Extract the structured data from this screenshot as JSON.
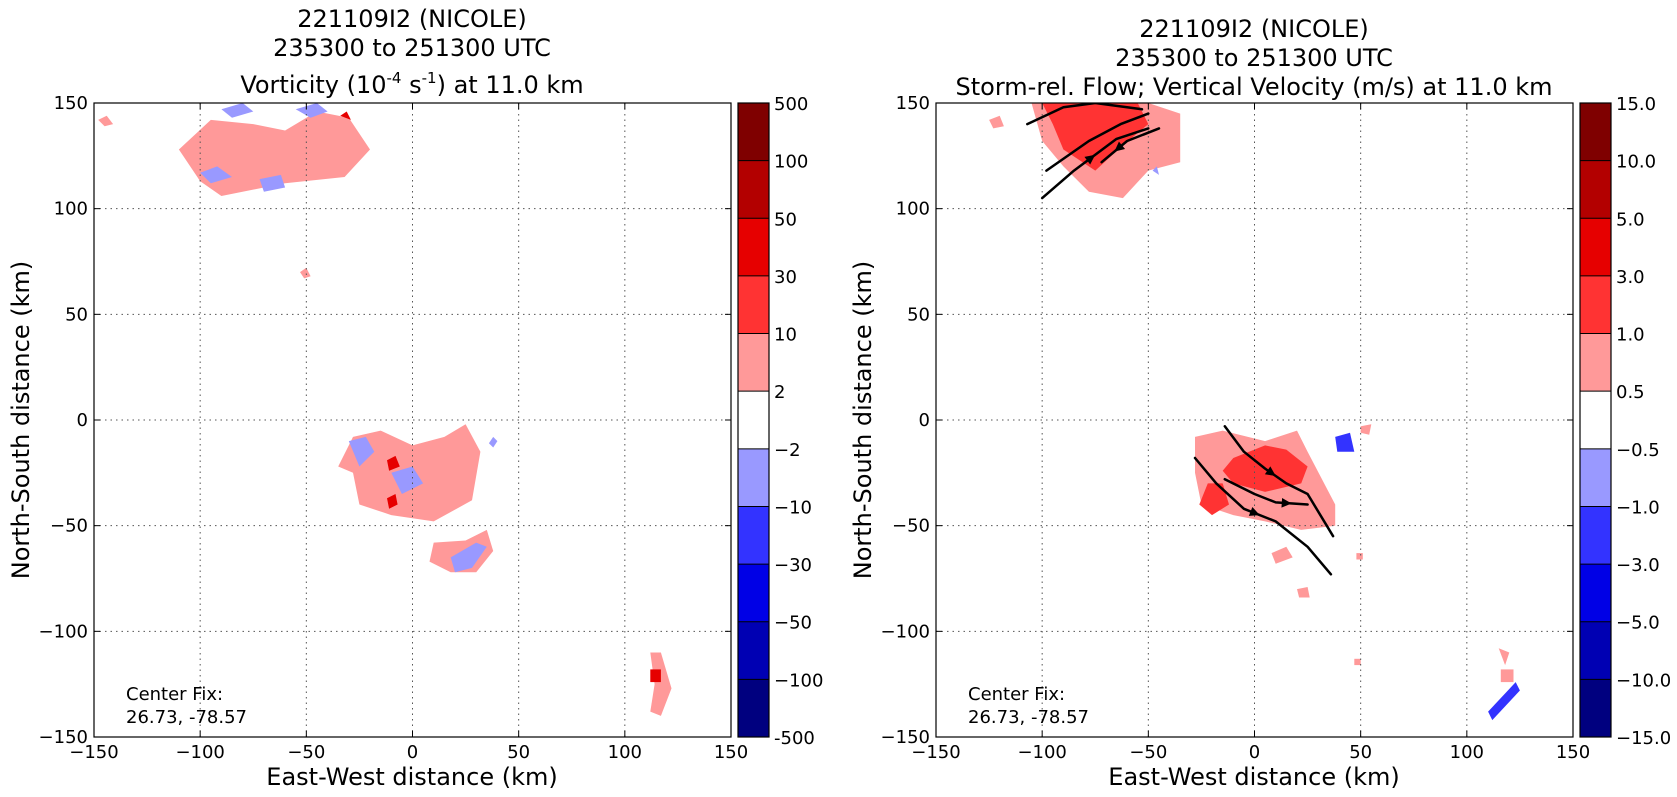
{
  "chart_data": [
    {
      "type": "heatmap",
      "title_lines": [
        "221109I2 (NICOLE)",
        "235300 to 251300 UTC"
      ],
      "title_line3": {
        "prefix": "Vorticity (10",
        "sup1": "-4",
        "mid": " s",
        "sup2": "-1",
        "suffix": ") at 11.0 km"
      },
      "xlabel": "East-West distance (km)",
      "ylabel": "North-South distance (km)",
      "xlim": [
        -150,
        150
      ],
      "ylim": [
        -150,
        150
      ],
      "xticks": [
        "−150",
        "−100",
        "−50",
        "0",
        "50",
        "100",
        "150"
      ],
      "yticks": [
        "−150",
        "−100",
        "−50",
        "0",
        "50",
        "100",
        "150"
      ],
      "grid": true,
      "annotation": [
        "Center Fix:",
        "26.73, -78.57"
      ],
      "colorbar": {
        "levels": [
          "-500",
          "−100",
          "−50",
          "−30",
          "−10",
          "−2",
          "2",
          "10",
          "30",
          "50",
          "100",
          "500"
        ],
        "colors": [
          "#00007f",
          "#0000b3",
          "#0000e6",
          "#3333ff",
          "#9999ff",
          "#ffffff",
          "#ff9999",
          "#ff3333",
          "#e60000",
          "#b30000",
          "#7f0000"
        ]
      },
      "regions": [
        {
          "level": 1,
          "points": [
            [
              -60,
              137
            ],
            [
              -45,
              146
            ],
            [
              -30,
              143
            ],
            [
              -20,
              128
            ],
            [
              -32,
              115
            ],
            [
              -60,
              112
            ],
            [
              -90,
              106
            ],
            [
              -100,
              113
            ],
            [
              -110,
              128
            ],
            [
              -95,
              142
            ],
            [
              -75,
              140
            ]
          ]
        },
        {
          "level": -1,
          "points": [
            [
              -90,
              147
            ],
            [
              -80,
              150
            ],
            [
              -75,
              146
            ],
            [
              -85,
              143
            ]
          ]
        },
        {
          "level": -1,
          "points": [
            [
              -55,
              147
            ],
            [
              -45,
              150
            ],
            [
              -40,
              146
            ],
            [
              -48,
              143
            ]
          ]
        },
        {
          "level": -1,
          "points": [
            [
              -100,
              117
            ],
            [
              -92,
              120
            ],
            [
              -85,
              115
            ],
            [
              -95,
              112
            ]
          ]
        },
        {
          "level": -1,
          "points": [
            [
              -72,
              114
            ],
            [
              -62,
              116
            ],
            [
              -60,
              110
            ],
            [
              -70,
              108
            ]
          ]
        },
        {
          "level": 1,
          "points": [
            [
              -148,
              142
            ],
            [
              -144,
              144
            ],
            [
              -141,
              140
            ],
            [
              -145,
              139
            ]
          ]
        },
        {
          "level": 1,
          "points": [
            [
              -53,
              70
            ],
            [
              -50,
              72
            ],
            [
              -48,
              68
            ],
            [
              -51,
              67
            ]
          ]
        },
        {
          "level": 1,
          "points": [
            [
              -28,
              -8
            ],
            [
              -15,
              -5
            ],
            [
              0,
              -12
            ],
            [
              15,
              -8
            ],
            [
              25,
              -2
            ],
            [
              32,
              -15
            ],
            [
              28,
              -38
            ],
            [
              10,
              -48
            ],
            [
              -10,
              -45
            ],
            [
              -25,
              -40
            ],
            [
              -28,
              -25
            ],
            [
              -35,
              -22
            ],
            [
              -30,
              -12
            ]
          ]
        },
        {
          "level": -1,
          "points": [
            [
              -30,
              -10
            ],
            [
              -22,
              -8
            ],
            [
              -18,
              -15
            ],
            [
              -25,
              -22
            ]
          ]
        },
        {
          "level": -1,
          "points": [
            [
              -10,
              -25
            ],
            [
              0,
              -22
            ],
            [
              5,
              -30
            ],
            [
              -5,
              -35
            ]
          ]
        },
        {
          "level": -1,
          "points": [
            [
              38,
              -8
            ],
            [
              40,
              -10
            ],
            [
              38,
              -13
            ],
            [
              36,
              -11
            ]
          ]
        },
        {
          "level": 1,
          "points": [
            [
              10,
              -58
            ],
            [
              25,
              -57
            ],
            [
              35,
              -52
            ],
            [
              38,
              -62
            ],
            [
              30,
              -72
            ],
            [
              18,
              -72
            ],
            [
              8,
              -67
            ]
          ]
        },
        {
          "level": -1,
          "points": [
            [
              18,
              -65
            ],
            [
              30,
              -58
            ],
            [
              35,
              -60
            ],
            [
              28,
              -70
            ],
            [
              20,
              -72
            ]
          ]
        },
        {
          "level": 1,
          "points": [
            [
              112,
              -110
            ],
            [
              117,
              -110
            ],
            [
              122,
              -127
            ],
            [
              117,
              -140
            ],
            [
              112,
              -138
            ],
            [
              114,
              -125
            ]
          ]
        }
      ],
      "strong_regions": [
        {
          "level": 3,
          "points": [
            [
              -12,
              -19
            ],
            [
              -8,
              -17
            ],
            [
              -6,
              -22
            ],
            [
              -11,
              -24
            ]
          ]
        },
        {
          "level": 3,
          "points": [
            [
              -12,
              -37
            ],
            [
              -8,
              -35
            ],
            [
              -7,
              -40
            ],
            [
              -11,
              -42
            ]
          ]
        },
        {
          "level": 3,
          "points": [
            [
              112,
              -118
            ],
            [
              117,
              -118
            ],
            [
              117,
              -124
            ],
            [
              112,
              -124
            ]
          ]
        },
        {
          "level": 3,
          "points": [
            [
              -34,
              144
            ],
            [
              -31,
              146
            ],
            [
              -29,
              142
            ]
          ]
        }
      ]
    },
    {
      "type": "heatmap",
      "title_lines": [
        "221109I2 (NICOLE)",
        "235300 to 251300 UTC",
        "Storm-rel. Flow; Vertical Velocity (m/s) at 11.0 km"
      ],
      "xlabel": "East-West distance (km)",
      "ylabel": "North-South distance (km)",
      "xlim": [
        -150,
        150
      ],
      "ylim": [
        -150,
        150
      ],
      "xticks": [
        "−150",
        "−100",
        "−50",
        "0",
        "50",
        "100",
        "150"
      ],
      "yticks": [
        "−150",
        "−100",
        "−50",
        "0",
        "50",
        "100",
        "150"
      ],
      "grid": true,
      "annotation": [
        "Center Fix:",
        "26.73, -78.57"
      ],
      "colorbar": {
        "levels": [
          "−15.0",
          "−10.0",
          "−5.0",
          "−3.0",
          "−1.0",
          "−0.5",
          "0.5",
          "1.0",
          "3.0",
          "5.0",
          "10.0",
          "15.0"
        ],
        "colors": [
          "#00007f",
          "#0000b3",
          "#0000e6",
          "#3333ff",
          "#9999ff",
          "#ffffff",
          "#ff9999",
          "#ff3333",
          "#e60000",
          "#b30000",
          "#7f0000"
        ]
      },
      "regions": [
        {
          "level": 1,
          "points": [
            [
              -105,
              150
            ],
            [
              -50,
              150
            ],
            [
              -35,
              145
            ],
            [
              -35,
              122
            ],
            [
              -50,
              118
            ],
            [
              -62,
              105
            ],
            [
              -78,
              108
            ],
            [
              -90,
              120
            ],
            [
              -100,
              132
            ]
          ]
        },
        {
          "level": 2,
          "points": [
            [
              -100,
              150
            ],
            [
              -55,
              150
            ],
            [
              -50,
              140
            ],
            [
              -62,
              130
            ],
            [
              -75,
              118
            ],
            [
              -90,
              128
            ],
            [
              -95,
              140
            ]
          ]
        },
        {
          "level": 1,
          "points": [
            [
              -125,
              142
            ],
            [
              -120,
              144
            ],
            [
              -118,
              139
            ],
            [
              -123,
              138
            ]
          ]
        },
        {
          "level": -1,
          "points": [
            [
              -48,
              118
            ],
            [
              -46,
              120
            ],
            [
              -45,
              116
            ]
          ]
        },
        {
          "level": 1,
          "points": [
            [
              -28,
              -8
            ],
            [
              -15,
              -5
            ],
            [
              5,
              -10
            ],
            [
              20,
              -5
            ],
            [
              25,
              -15
            ],
            [
              38,
              -40
            ],
            [
              38,
              -50
            ],
            [
              22,
              -52
            ],
            [
              5,
              -48
            ],
            [
              -10,
              -45
            ],
            [
              -25,
              -40
            ],
            [
              -28,
              -25
            ]
          ]
        },
        {
          "level": 2,
          "points": [
            [
              -10,
              -18
            ],
            [
              5,
              -12
            ],
            [
              15,
              -14
            ],
            [
              25,
              -22
            ],
            [
              22,
              -30
            ],
            [
              5,
              -34
            ],
            [
              -10,
              -30
            ],
            [
              -15,
              -24
            ]
          ]
        },
        {
          "level": 2,
          "points": [
            [
              -22,
              -30
            ],
            [
              -15,
              -30
            ],
            [
              -12,
              -40
            ],
            [
              -20,
              -45
            ],
            [
              -26,
              -40
            ]
          ]
        },
        {
          "level": 1,
          "points": [
            [
              8,
              -63
            ],
            [
              15,
              -60
            ],
            [
              18,
              -65
            ],
            [
              10,
              -68
            ]
          ]
        },
        {
          "level": 1,
          "points": [
            [
              20,
              -80
            ],
            [
              25,
              -79
            ],
            [
              26,
              -84
            ],
            [
              21,
              -84
            ]
          ]
        },
        {
          "level": 1,
          "points": [
            [
              48,
              -63
            ],
            [
              51,
              -63
            ],
            [
              51,
              -66
            ],
            [
              48,
              -66
            ]
          ]
        },
        {
          "level": -2,
          "points": [
            [
              38,
              -8
            ],
            [
              45,
              -6
            ],
            [
              47,
              -15
            ],
            [
              39,
              -15
            ]
          ]
        },
        {
          "level": 1,
          "points": [
            [
              50,
              -3
            ],
            [
              55,
              -2
            ],
            [
              54,
              -7
            ],
            [
              50,
              -6
            ]
          ]
        },
        {
          "level": 1,
          "points": [
            [
              115,
              -108
            ],
            [
              120,
              -110
            ],
            [
              118,
              -116
            ]
          ]
        },
        {
          "level": 1,
          "points": [
            [
              116,
              -118
            ],
            [
              122,
              -118
            ],
            [
              122,
              -124
            ],
            [
              116,
              -124
            ]
          ]
        },
        {
          "level": -2,
          "points": [
            [
              110,
              -138
            ],
            [
              123,
              -124
            ],
            [
              125,
              -128
            ],
            [
              112,
              -142
            ]
          ]
        },
        {
          "level": 1,
          "points": [
            [
              47,
              -113
            ],
            [
              50,
              -113
            ],
            [
              50,
              -116
            ],
            [
              47,
              -116
            ]
          ]
        }
      ],
      "streamlines": [
        {
          "points": [
            [
              -107,
              140
            ],
            [
              -90,
              148
            ],
            [
              -75,
              150
            ],
            [
              -53,
              147
            ]
          ]
        },
        {
          "points": [
            [
              -98,
              118
            ],
            [
              -78,
              132
            ],
            [
              -63,
              140
            ],
            [
              -50,
              145
            ]
          ]
        },
        {
          "points": [
            [
              -100,
              105
            ],
            [
              -85,
              118
            ],
            [
              -65,
              133
            ],
            [
              -50,
              138
            ]
          ],
          "arrow_at": 1
        },
        {
          "points": [
            [
              -45,
              138
            ],
            [
              -60,
              132
            ],
            [
              -72,
              122
            ]
          ],
          "arrow_at": 1
        },
        {
          "points": [
            [
              -14,
              -3
            ],
            [
              -5,
              -15
            ],
            [
              5,
              -23
            ],
            [
              15,
              -30
            ],
            [
              25,
              -35
            ],
            [
              37,
              -55
            ]
          ],
          "arrow_at": 2
        },
        {
          "points": [
            [
              -28,
              -18
            ],
            [
              -18,
              -30
            ],
            [
              -5,
              -42
            ],
            [
              10,
              -48
            ],
            [
              25,
              -60
            ],
            [
              36,
              -73
            ]
          ],
          "arrow_at": 2
        },
        {
          "points": [
            [
              -14,
              -28
            ],
            [
              0,
              -35
            ],
            [
              10,
              -39
            ],
            [
              25,
              -40
            ]
          ],
          "arrow_at": 2
        }
      ]
    }
  ]
}
